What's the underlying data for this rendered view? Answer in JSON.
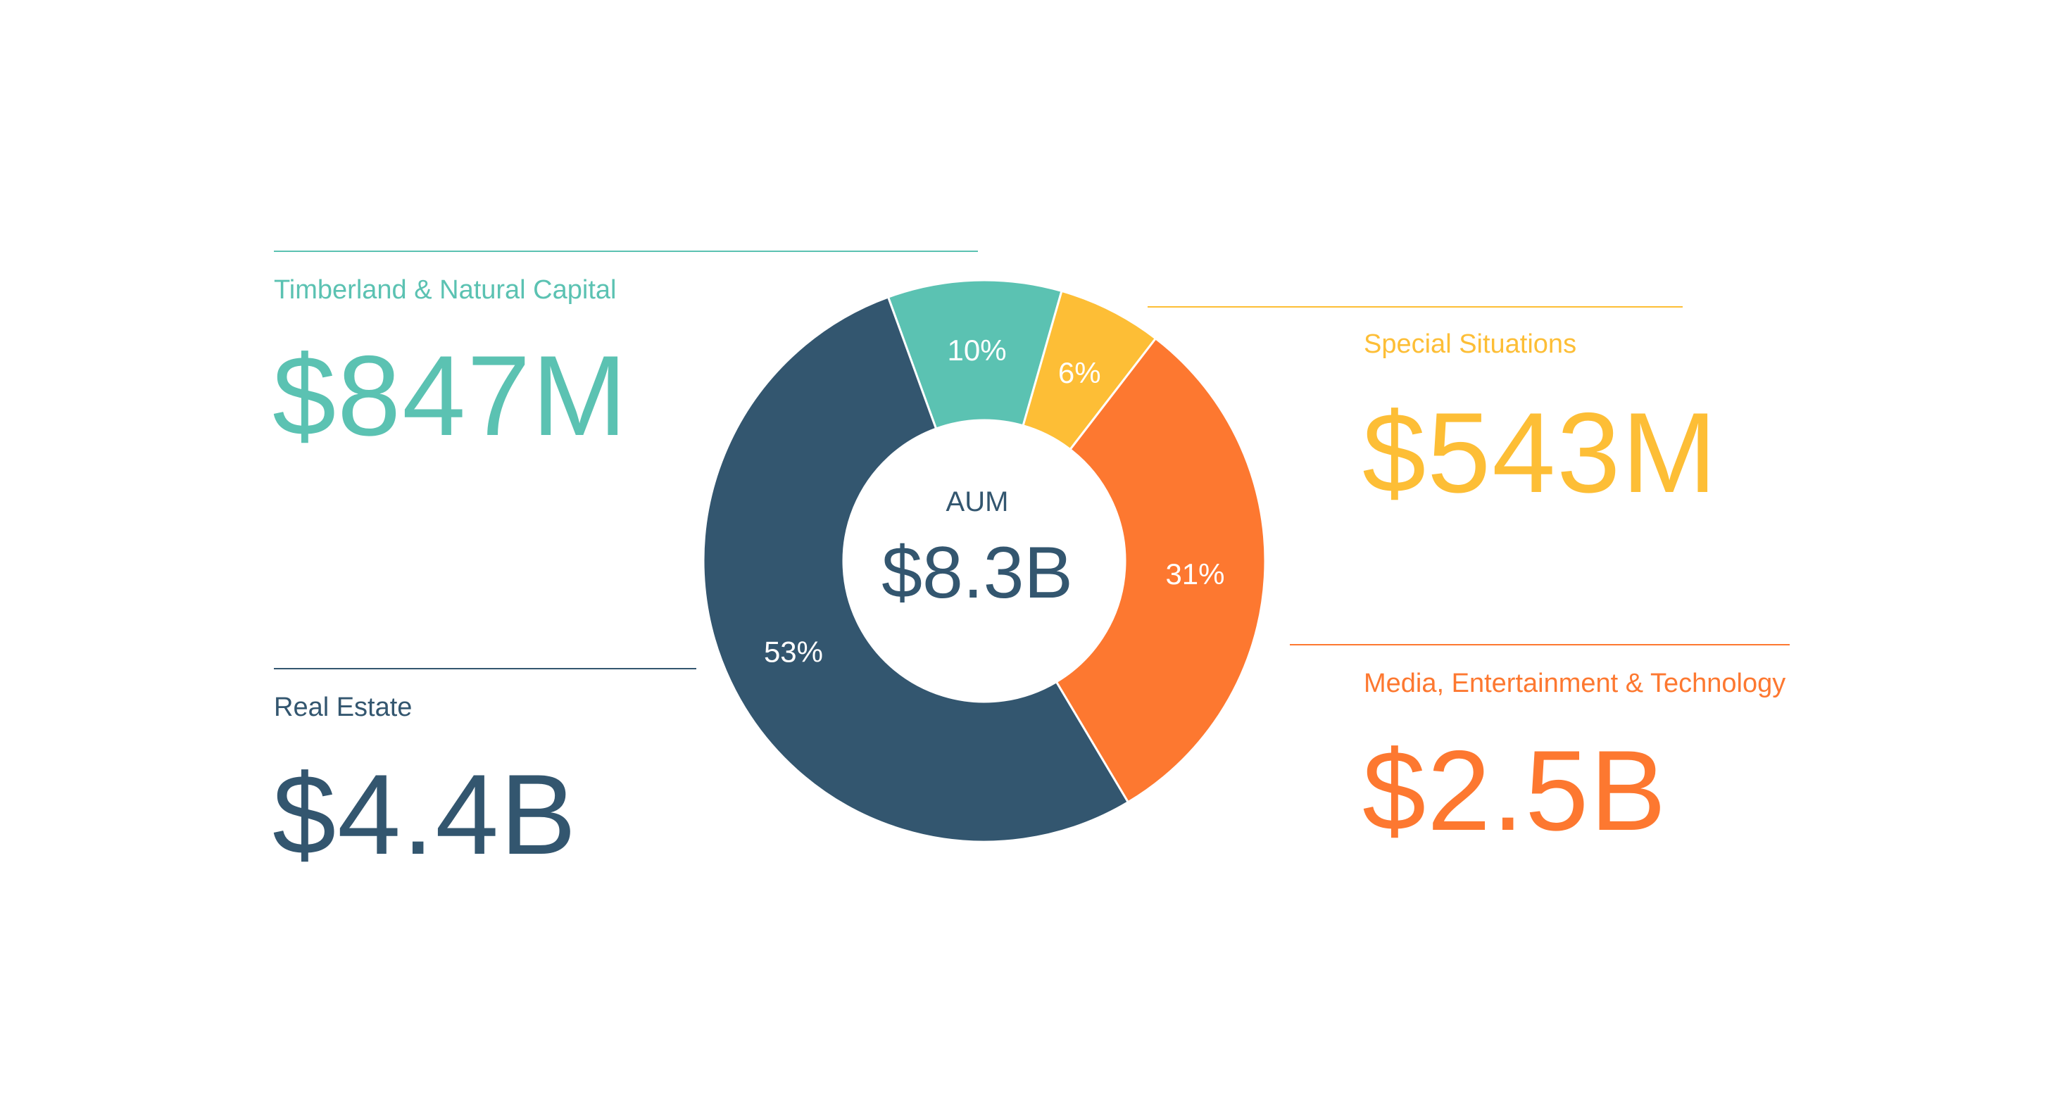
{
  "colors": {
    "teal": "#5bc2b2",
    "navy": "#33566f",
    "yellow": "#fdbe36",
    "orange": "#fd7830",
    "white": "#ffffff"
  },
  "categories": {
    "timberland": {
      "label": "Timberland & Natural Capital",
      "value": "$847M"
    },
    "real_estate": {
      "label": "Real Estate",
      "value": "$4.4B"
    },
    "special": {
      "label": "Special Situations",
      "value": "$543M"
    },
    "media": {
      "label": "Media, Entertainment & Technology",
      "value": "$2.5B"
    }
  },
  "chart_data": {
    "type": "pie",
    "variant": "donut",
    "title": "",
    "center": {
      "label": "AUM",
      "value": "$8.3B"
    },
    "slices": [
      {
        "name": "Timberland & Natural Capital",
        "value": 10,
        "label": "10%",
        "color": "#5bc2b2"
      },
      {
        "name": "Special Situations",
        "value": 6,
        "label": "6%",
        "color": "#fdbe36"
      },
      {
        "name": "Media, Entertainment & Technology",
        "value": 31,
        "label": "31%",
        "color": "#fd7830"
      },
      {
        "name": "Real Estate",
        "value": 53,
        "label": "53%",
        "color": "#33566f"
      }
    ]
  }
}
